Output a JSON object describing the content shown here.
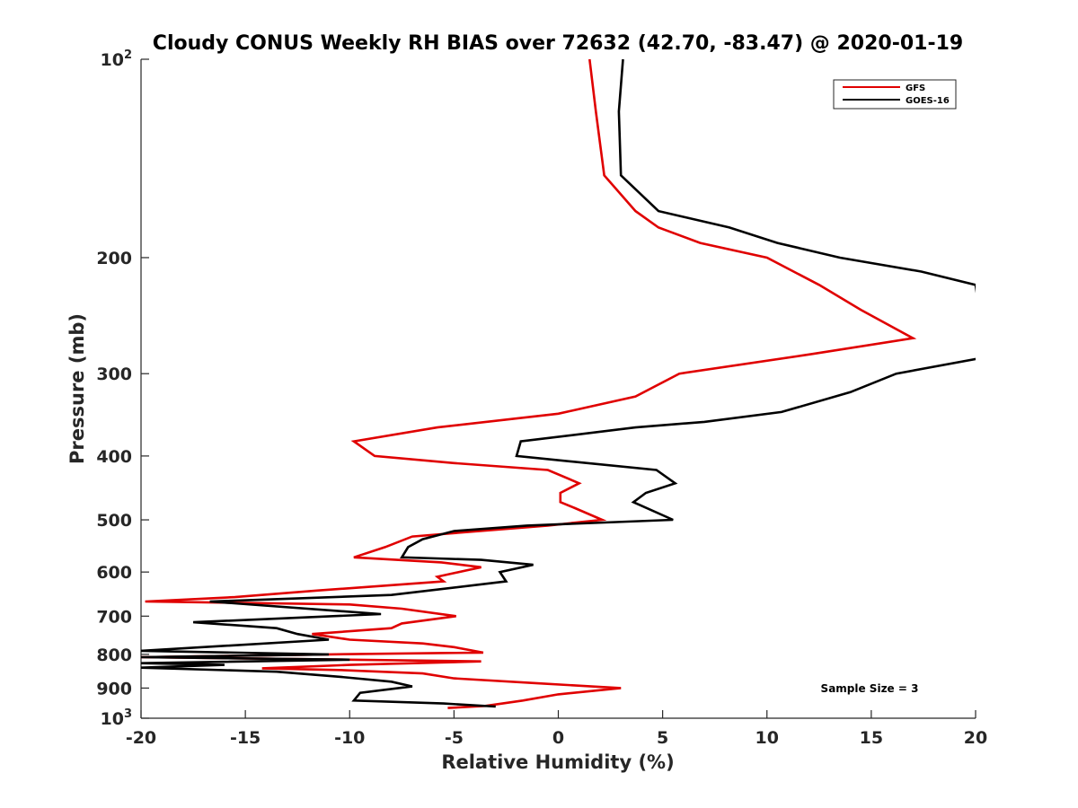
{
  "chart_data": {
    "type": "line",
    "title": "Cloudy CONUS Weekly RH BIAS over 72632 (42.70, -83.47) @ 2020-01-19",
    "xlabel": "Relative Humidity (%)",
    "ylabel": "Pressure (mb)",
    "xlim": [
      -20,
      20
    ],
    "ylim": [
      100,
      1000
    ],
    "yscale": "log",
    "y_reversed": true,
    "grid": false,
    "legend_position": "top-right",
    "annotation": "Sample Size = 3",
    "x_ticks": [
      "-20",
      "-15",
      "-10",
      "-5",
      "0",
      "5",
      "10",
      "15",
      "20"
    ],
    "y_ticks": [
      {
        "value": 100,
        "label": "10",
        "sup": "2"
      },
      {
        "value": 200,
        "label": "200",
        "sup": ""
      },
      {
        "value": 300,
        "label": "300",
        "sup": ""
      },
      {
        "value": 400,
        "label": "400",
        "sup": ""
      },
      {
        "value": 500,
        "label": "500",
        "sup": ""
      },
      {
        "value": 600,
        "label": "600",
        "sup": ""
      },
      {
        "value": 700,
        "label": "700",
        "sup": ""
      },
      {
        "value": 800,
        "label": "800",
        "sup": ""
      },
      {
        "value": 900,
        "label": "900",
        "sup": ""
      },
      {
        "value": 1000,
        "label": "10",
        "sup": "3"
      }
    ],
    "series": [
      {
        "name": "GFS",
        "color": "#e00000",
        "points": [
          [
            1.5,
            100
          ],
          [
            1.8,
            120
          ],
          [
            2.2,
            150
          ],
          [
            3.7,
            170
          ],
          [
            4.8,
            180
          ],
          [
            6.8,
            190
          ],
          [
            10.0,
            200
          ],
          [
            12.5,
            220
          ],
          [
            14.5,
            240
          ],
          [
            17.0,
            265
          ],
          [
            12.2,
            280
          ],
          [
            5.8,
            300
          ],
          [
            3.7,
            325
          ],
          [
            0.0,
            345
          ],
          [
            -5.8,
            362
          ],
          [
            -9.8,
            380
          ],
          [
            -8.8,
            400
          ],
          [
            -5.0,
            410
          ],
          [
            -0.5,
            420
          ],
          [
            1.0,
            440
          ],
          [
            0.1,
            455
          ],
          [
            0.1,
            470
          ],
          [
            0.8,
            480
          ],
          [
            2.1,
            500
          ],
          [
            -0.5,
            510
          ],
          [
            -7.0,
            530
          ],
          [
            -8.3,
            550
          ],
          [
            -9.8,
            570
          ],
          [
            -5.6,
            580
          ],
          [
            -3.7,
            590
          ],
          [
            -5.8,
            610
          ],
          [
            -5.5,
            620
          ],
          [
            -11.5,
            640
          ],
          [
            -15.5,
            655
          ],
          [
            -19.8,
            665
          ],
          [
            -10.0,
            672
          ],
          [
            -7.5,
            682
          ],
          [
            -4.9,
            700
          ],
          [
            -7.5,
            718
          ],
          [
            -8.0,
            730
          ],
          [
            -11.8,
            745
          ],
          [
            -10.0,
            760
          ],
          [
            -6.5,
            770
          ],
          [
            -5.0,
            780
          ],
          [
            -3.6,
            795
          ],
          [
            -11.0,
            800
          ],
          [
            -20.0,
            808
          ],
          [
            -10.0,
            815
          ],
          [
            -3.7,
            820
          ],
          [
            -10.0,
            830
          ],
          [
            -14.2,
            840
          ],
          [
            -10.5,
            845
          ],
          [
            -6.5,
            855
          ],
          [
            -5.0,
            870
          ],
          [
            -1.0,
            885
          ],
          [
            3.0,
            900
          ],
          [
            0.0,
            920
          ],
          [
            -1.7,
            940
          ],
          [
            -3.5,
            958
          ],
          [
            -5.3,
            965
          ]
        ]
      },
      {
        "name": "GOES-16",
        "color": "#000000",
        "points": [
          [
            3.1,
            100
          ],
          [
            2.9,
            120
          ],
          [
            3.0,
            150
          ],
          [
            4.8,
            170
          ],
          [
            8.2,
            180
          ],
          [
            10.5,
            190
          ],
          [
            13.5,
            200
          ],
          [
            17.4,
            210
          ],
          [
            20.0,
            220
          ],
          [
            20.5,
            285
          ],
          [
            20.0,
            285
          ],
          [
            16.2,
            300
          ],
          [
            14.0,
            320
          ],
          [
            10.7,
            343
          ],
          [
            7.0,
            355
          ],
          [
            3.7,
            362
          ],
          [
            -1.8,
            380
          ],
          [
            -2.0,
            400
          ],
          [
            4.7,
            420
          ],
          [
            5.6,
            440
          ],
          [
            4.2,
            455
          ],
          [
            3.6,
            470
          ],
          [
            5.5,
            500
          ],
          [
            -1.5,
            510
          ],
          [
            -5.0,
            520
          ],
          [
            -6.5,
            535
          ],
          [
            -7.2,
            550
          ],
          [
            -7.5,
            570
          ],
          [
            -3.7,
            575
          ],
          [
            -1.2,
            585
          ],
          [
            -2.8,
            600
          ],
          [
            -2.5,
            620
          ],
          [
            -8.0,
            650
          ],
          [
            -16.7,
            665
          ],
          [
            -8.5,
            695
          ],
          [
            -17.5,
            715
          ],
          [
            -13.5,
            730
          ],
          [
            -12.5,
            745
          ],
          [
            -11.0,
            760
          ],
          [
            -20.0,
            790
          ],
          [
            -11.0,
            800
          ],
          [
            -20.0,
            808
          ],
          [
            -10.0,
            815
          ],
          [
            -20.0,
            825
          ],
          [
            -16.0,
            830
          ],
          [
            -20.0,
            838
          ],
          [
            -13.5,
            850
          ],
          [
            -10.5,
            865
          ],
          [
            -8.0,
            880
          ],
          [
            -7.0,
            895
          ],
          [
            -9.5,
            915
          ],
          [
            -9.8,
            940
          ],
          [
            -5.5,
            950
          ],
          [
            -3.0,
            960
          ]
        ]
      }
    ]
  }
}
